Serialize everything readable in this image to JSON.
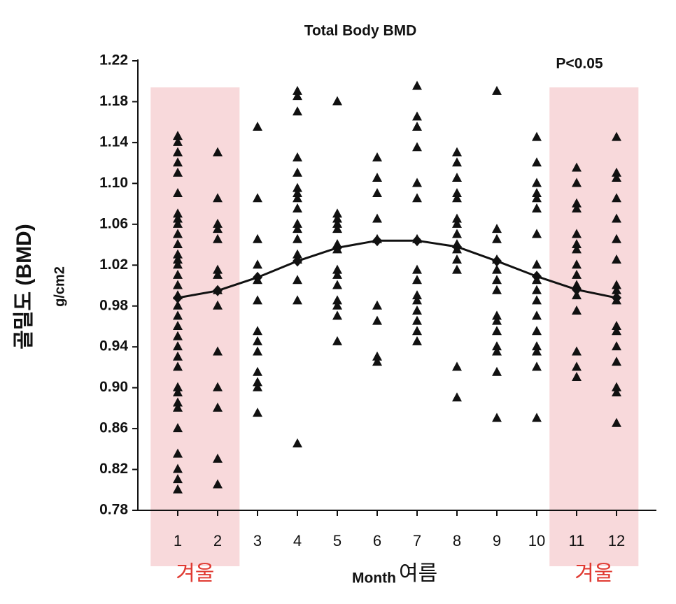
{
  "chart_data": {
    "type": "scatter",
    "title": "Total Body BMD",
    "annotation": "P<0.05",
    "xlabel": "Month",
    "xlabel_note": "여름",
    "ylabel": "골밀도 (BMD)",
    "ylabel_unit": "g/cm2",
    "xlim": [
      0,
      13
    ],
    "xticks": [
      1,
      2,
      3,
      4,
      5,
      6,
      7,
      8,
      9,
      10,
      11,
      12
    ],
    "ylim": [
      0.78,
      1.22
    ],
    "yticks": [
      0.78,
      0.82,
      0.86,
      {
        "value": 0.9,
        "label": "0.90"
      },
      0.94,
      0.98,
      1.02,
      1.06,
      {
        "value": 1.1,
        "label": "1.10"
      },
      1.14,
      1.18,
      1.22
    ],
    "color": "#111111",
    "winter": {
      "label": "겨울",
      "color": "#f8d9db",
      "label_color": "#e03a32",
      "ranges": [
        [
          1,
          2
        ],
        [
          11,
          12
        ]
      ]
    },
    "groups": [
      {
        "x": 1,
        "values": [
          1.146,
          1.14,
          1.13,
          1.12,
          1.11,
          1.09,
          1.07,
          1.065,
          1.06,
          1.05,
          1.04,
          1.03,
          1.025,
          1.02,
          1.01,
          1.0,
          0.99,
          0.98,
          0.97,
          0.96,
          0.95,
          0.94,
          0.93,
          0.92,
          0.9,
          0.895,
          0.885,
          0.88,
          0.86,
          0.835,
          0.82,
          0.81,
          0.8
        ]
      },
      {
        "x": 2,
        "values": [
          1.13,
          1.085,
          1.06,
          1.055,
          1.045,
          1.015,
          1.01,
          0.995,
          0.98,
          0.935,
          0.9,
          0.88,
          0.83,
          0.805
        ]
      },
      {
        "x": 3,
        "values": [
          1.155,
          1.085,
          1.045,
          1.02,
          1.005,
          0.985,
          0.955,
          0.945,
          0.935,
          0.915,
          0.905,
          0.9,
          0.875
        ]
      },
      {
        "x": 4,
        "values": [
          1.19,
          1.185,
          1.17,
          1.125,
          1.11,
          1.095,
          1.09,
          1.085,
          1.075,
          1.06,
          1.055,
          1.045,
          1.03,
          1.025,
          1.005,
          0.985,
          0.845
        ]
      },
      {
        "x": 5,
        "values": [
          1.18,
          1.07,
          1.065,
          1.06,
          1.055,
          1.04,
          1.035,
          1.015,
          1.01,
          1.0,
          0.985,
          0.98,
          0.97,
          0.945
        ]
      },
      {
        "x": 6,
        "values": [
          1.125,
          1.105,
          1.09,
          1.065,
          1.045,
          0.98,
          0.965,
          0.93,
          0.925
        ]
      },
      {
        "x": 7,
        "values": [
          1.195,
          1.165,
          1.155,
          1.135,
          1.1,
          1.085,
          1.045,
          1.015,
          1.005,
          0.99,
          0.985,
          0.975,
          0.965,
          0.955,
          0.945
        ]
      },
      {
        "x": 8,
        "values": [
          1.13,
          1.12,
          1.105,
          1.09,
          1.085,
          1.065,
          1.06,
          1.05,
          1.04,
          1.035,
          1.025,
          1.015,
          0.92,
          0.89
        ]
      },
      {
        "x": 9,
        "values": [
          1.19,
          1.055,
          1.045,
          1.025,
          1.015,
          1.005,
          0.995,
          0.97,
          0.965,
          0.955,
          0.94,
          0.935,
          0.915,
          0.87
        ]
      },
      {
        "x": 10,
        "values": [
          1.145,
          1.12,
          1.1,
          1.09,
          1.085,
          1.075,
          1.05,
          1.02,
          1.005,
          0.995,
          0.985,
          0.97,
          0.955,
          0.94,
          0.935,
          0.92,
          0.87
        ]
      },
      {
        "x": 11,
        "values": [
          1.115,
          1.1,
          1.08,
          1.075,
          1.05,
          1.04,
          1.035,
          1.02,
          1.01,
          1.0,
          0.99,
          0.975,
          0.935,
          0.92,
          0.91
        ]
      },
      {
        "x": 12,
        "values": [
          1.145,
          1.11,
          1.105,
          1.085,
          1.065,
          1.045,
          1.025,
          1.0,
          0.995,
          0.985,
          0.96,
          0.955,
          0.94,
          0.925,
          0.9,
          0.895,
          0.865
        ]
      }
    ],
    "mean": {
      "x": [
        1,
        2,
        3,
        4,
        5,
        6,
        7,
        8,
        9,
        10,
        11,
        12
      ],
      "values": [
        0.988,
        0.995,
        1.008,
        1.024,
        1.037,
        1.044,
        1.044,
        1.038,
        1.024,
        1.009,
        0.996,
        0.988
      ]
    }
  }
}
